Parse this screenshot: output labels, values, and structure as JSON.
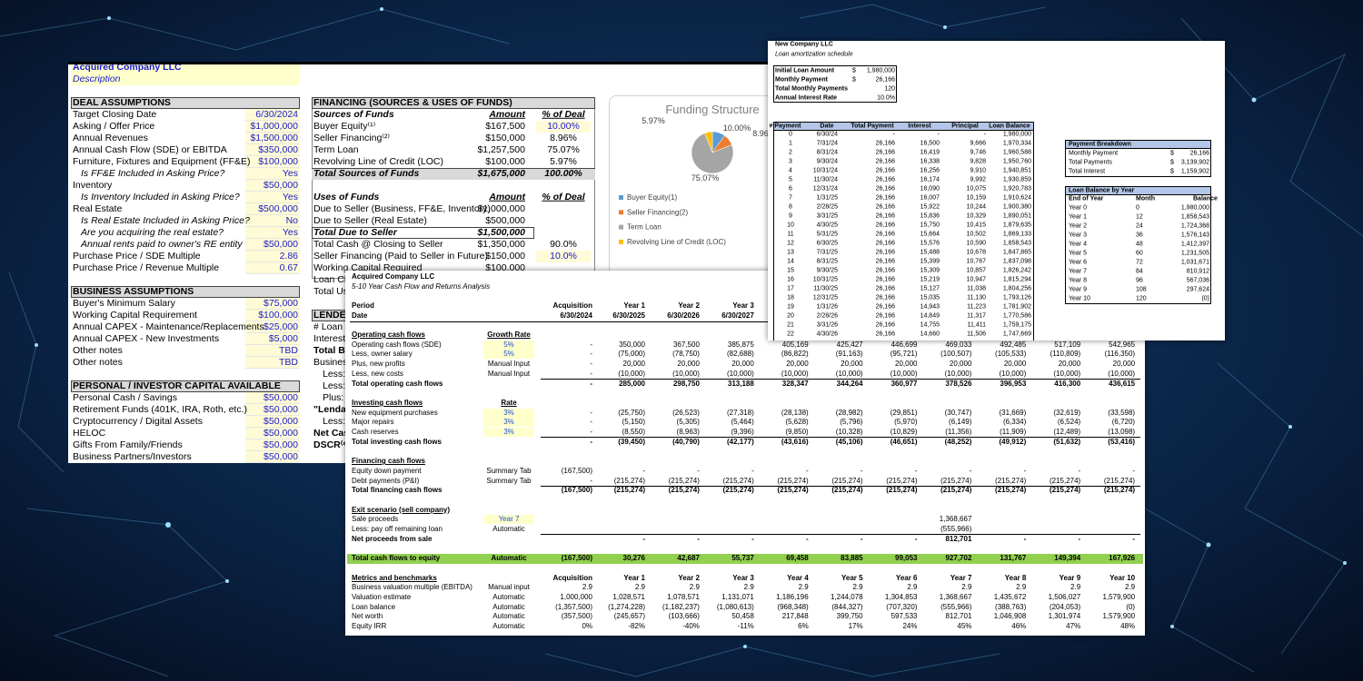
{
  "deal_sheet": {
    "title": "Acquired Company LLC",
    "description": "Description",
    "deal_assumptions": {
      "heading": "DEAL ASSUMPTIONS",
      "rows": [
        [
          "Target Closing Date",
          "6/30/2024"
        ],
        [
          "Asking / Offer Price",
          "$1,000,000"
        ],
        [
          "Annual Revenues",
          "$1,500,000"
        ],
        [
          "Annual Cash Flow (SDE) or EBITDA",
          "$350,000"
        ],
        [
          "Furniture, Fixtures and Equipment (FF&E)",
          "$100,000"
        ],
        [
          "Is FF&E Included in Asking Price?",
          "Yes"
        ],
        [
          "Inventory",
          "$50,000"
        ],
        [
          "Is Inventory Included in Asking Price?",
          "Yes"
        ],
        [
          "Real Estate",
          "$500,000"
        ],
        [
          "Is Real Estate Included in Asking Price?",
          "No"
        ],
        [
          "Are you acquiring the real estate?",
          "Yes"
        ],
        [
          "Annual rents paid to owner's RE entity",
          "$50,000"
        ],
        [
          "Purchase Price / SDE Multiple",
          "2.86"
        ],
        [
          "Purchase Price / Revenue Multiple",
          "0.67"
        ]
      ]
    },
    "business_assumptions": {
      "heading": "BUSINESS ASSUMPTIONS",
      "rows": [
        [
          "Buyer's Minimum Salary",
          "$75,000"
        ],
        [
          "Working Capital Requirement",
          "$100,000"
        ],
        [
          "Annual CAPEX - Maintenance/Replacements",
          "$25,000"
        ],
        [
          "Annual CAPEX - New Investments",
          "$5,000"
        ],
        [
          "Other notes",
          "TBD"
        ],
        [
          "Other notes",
          "TBD"
        ]
      ]
    },
    "capital_available": {
      "heading": "PERSONAL / INVESTOR CAPITAL AVAILABLE",
      "rows": [
        [
          "Personal Cash / Savings",
          "$50,000"
        ],
        [
          "Retirement Funds (401K, IRA, Roth, etc.)",
          "$50,000"
        ],
        [
          "Cryptocurrency / Digital Assets",
          "$50,000"
        ],
        [
          "HELOC",
          "$50,000"
        ],
        [
          "Gifts From Family/Friends",
          "$50,000"
        ],
        [
          "Business Partners/Investors",
          "$50,000"
        ]
      ]
    },
    "financing": {
      "heading": "FINANCING (SOURCES & USES OF FUNDS)",
      "rows": [
        [
          "Sources of Funds",
          "Amount",
          "% of Deal"
        ],
        [
          "Buyer Equity⁽¹⁾",
          "$167,500",
          "10.00%"
        ],
        [
          "Seller Financing⁽²⁾",
          "$150,000",
          "8.96%"
        ],
        [
          "Term Loan",
          "$1,257,500",
          "75.07%"
        ],
        [
          "Revolving Line of Credit (LOC)",
          "$100,000",
          "5.97%"
        ],
        [
          "Total Sources of Funds",
          "$1,675,000",
          "100.00%"
        ],
        null,
        [
          "Uses of Funds",
          "Amount",
          "% of Deal"
        ],
        [
          "Due to Seller (Business, FF&E, Inventory)",
          "$1,000,000",
          null
        ],
        [
          "Due to Seller (Real Estate)",
          "$500,000",
          null
        ],
        [
          "Total Due to Seller",
          "$1,500,000",
          null
        ],
        [
          "Total Cash @ Closing to Seller",
          "$1,350,000",
          "90.0%"
        ],
        [
          "Seller Financing (Paid to Seller in Future)",
          "$150,000",
          "10.0%"
        ],
        [
          "Working Capital Required",
          "$100,000",
          null
        ],
        [
          "Loan Clo"
        ],
        [
          "Total Us"
        ]
      ]
    },
    "lender": {
      "heading": "LENDER",
      "rows": [
        "# Loan P",
        "Interest",
        "Total Bo",
        "Business",
        "Less: Bu",
        "Less: Ca",
        "Plus: Re",
        "\"Lendab",
        "Less: D",
        "Net Cash",
        "DSCR⁽⁶⁾"
      ]
    }
  },
  "funding_chart": {
    "type": "pie",
    "title": "Funding Structure",
    "categories": [
      "Buyer Equity(1)",
      "Seller Financing(2)",
      "Term Loan",
      "Revolving Line of Credit (LOC)"
    ],
    "values": [
      10.0,
      8.96,
      75.07,
      5.97
    ],
    "value_labels": [
      "10.00%",
      "8.96%",
      "75.07%",
      "5.97%"
    ],
    "colors": [
      "#5b9bd5",
      "#ed7d31",
      "#a5a5a5",
      "#ffc000"
    ],
    "legend": "bottom"
  },
  "cash_flow_sheet": {
    "title": "Acquired Company LLC",
    "subtitle": "5-10 Year Cash Flow and Returns Analysis",
    "header": [
      [
        "Period",
        null,
        "Acquisition",
        "Year 1",
        "Year 2",
        "Year 3"
      ],
      [
        "Date",
        null,
        "6/30/2024",
        "6/30/2025",
        "6/30/2026",
        "6/30/2027"
      ]
    ],
    "rows": [
      [
        "Operating cash flows",
        "Growth Rate"
      ],
      [
        "Operating cash flows (SDE)",
        "5%",
        "-",
        "350,000",
        "367,500",
        "385,875",
        "405,169",
        "425,427",
        "446,699",
        "469,033",
        "492,485",
        "517,109",
        "542,965"
      ],
      [
        "Less, owner salary",
        "5%",
        "-",
        "(75,000)",
        "(78,750)",
        "(82,688)",
        "(86,822)",
        "(91,163)",
        "(95,721)",
        "(100,507)",
        "(105,533)",
        "(110,809)",
        "(116,350)"
      ],
      [
        "Plus, new profits",
        "Manual Input",
        "-",
        "20,000",
        "20,000",
        "20,000",
        "20,000",
        "20,000",
        "20,000",
        "20,000",
        "20,000",
        "20,000",
        "20,000"
      ],
      [
        "Less, new costs",
        "Manual Input",
        "-",
        "(10,000)",
        "(10,000)",
        "(10,000)",
        "(10,000)",
        "(10,000)",
        "(10,000)",
        "(10,000)",
        "(10,000)",
        "(10,000)",
        "(10,000)"
      ],
      [
        "Total operating cash flows",
        null,
        "-",
        "285,000",
        "298,750",
        "313,188",
        "328,347",
        "344,264",
        "360,977",
        "378,526",
        "396,953",
        "416,300",
        "436,615"
      ],
      null,
      [
        "Investing cash flows",
        "Rate"
      ],
      [
        "New equipment purchases",
        "3%",
        "-",
        "(25,750)",
        "(26,523)",
        "(27,318)",
        "(28,138)",
        "(28,982)",
        "(29,851)",
        "(30,747)",
        "(31,669)",
        "(32,619)",
        "(33,598)"
      ],
      [
        "Major repairs",
        "3%",
        "-",
        "(5,150)",
        "(5,305)",
        "(5,464)",
        "(5,628)",
        "(5,796)",
        "(5,970)",
        "(6,149)",
        "(6,334)",
        "(6,524)",
        "(6,720)"
      ],
      [
        "Cash reserves",
        "3%",
        "-",
        "(8,550)",
        "(8,963)",
        "(9,396)",
        "(9,850)",
        "(10,328)",
        "(10,829)",
        "(11,356)",
        "(11,909)",
        "(12,489)",
        "(13,098)"
      ],
      [
        "Total investing cash flows",
        null,
        "-",
        "(39,450)",
        "(40,790)",
        "(42,177)",
        "(43,616)",
        "(45,106)",
        "(46,651)",
        "(48,252)",
        "(49,912)",
        "(51,632)",
        "(53,416)"
      ],
      null,
      [
        "Financing cash flows"
      ],
      [
        "Equity down payment",
        "Summary Tab",
        "(167,500)",
        "-",
        "-",
        "-",
        "-",
        "-",
        "-",
        "-",
        "-",
        "-",
        "-"
      ],
      [
        "Debt payments (P&I)",
        "Summary Tab",
        "-",
        "(215,274)",
        "(215,274)",
        "(215,274)",
        "(215,274)",
        "(215,274)",
        "(215,274)",
        "(215,274)",
        "(215,274)",
        "(215,274)",
        "(215,274)"
      ],
      [
        "Total financing cash flows",
        null,
        "(167,500)",
        "(215,274)",
        "(215,274)",
        "(215,274)",
        "(215,274)",
        "(215,274)",
        "(215,274)",
        "(215,274)",
        "(215,274)",
        "(215,274)",
        "(215,274)"
      ],
      null,
      [
        "Exit scenario (sell company)"
      ],
      [
        "Sale proceeds",
        "Year 7",
        null,
        null,
        null,
        null,
        null,
        null,
        null,
        "1,368,667"
      ],
      [
        "Less: pay off remaining loan",
        "Automatic",
        null,
        null,
        null,
        null,
        null,
        null,
        null,
        "(555,966)"
      ],
      [
        "Net proceeds from sale",
        null,
        null,
        "-",
        "-",
        "-",
        "-",
        "-",
        "-",
        "812,701",
        "-",
        "-",
        "-"
      ],
      null,
      [
        "Total cash flows to equity",
        "Automatic",
        "(167,500)",
        "30,276",
        "42,687",
        "55,737",
        "69,458",
        "83,885",
        "99,053",
        "927,702",
        "131,767",
        "149,394",
        "167,926"
      ],
      null,
      [
        "Metrics and benchmarks",
        null,
        "Acquisition",
        "Year 1",
        "Year 2",
        "Year 3",
        "Year 4",
        "Year 5",
        "Year 6",
        "Year 7",
        "Year 8",
        "Year 9",
        "Year 10"
      ],
      [
        "Business valuation multiple (EBITDA)",
        "Manual input",
        "2.9",
        "2.9",
        "2.9",
        "2.9",
        "2.9",
        "2.9",
        "2.9",
        "2.9",
        "2.9",
        "2.9",
        "2.9"
      ],
      [
        "Valuation estimate",
        "Automatic",
        "1,000,000",
        "1,028,571",
        "1,078,571",
        "1,131,071",
        "1,186,196",
        "1,244,078",
        "1,304,853",
        "1,368,667",
        "1,435,672",
        "1,506,027",
        "1,579,900"
      ],
      [
        "Loan balance",
        "Automatic",
        "(1,357,500)",
        "(1,274,228)",
        "(1,182,237)",
        "(1,080,613)",
        "(968,348)",
        "(844,327)",
        "(707,320)",
        "(555,966)",
        "(388,763)",
        "(204,053)",
        "(0)"
      ],
      [
        "Net worth",
        "Automatic",
        "(357,500)",
        "(245,657)",
        "(103,666)",
        "50,458",
        "217,848",
        "399,750",
        "597,533",
        "812,701",
        "1,046,908",
        "1,301,974",
        "1,579,900"
      ],
      [
        "Equity IRR",
        "Automatic",
        "0%",
        "-82%",
        "-40%",
        "-11%",
        "6%",
        "17%",
        "24%",
        "45%",
        "46%",
        "47%",
        "48%"
      ]
    ]
  },
  "amortization": {
    "title": "New Company LLC",
    "subtitle": "Loan amortization schedule",
    "summary": [
      [
        "Initial Loan Amount",
        "$",
        "1,980,000"
      ],
      [
        "Monthly Payment",
        "$",
        "26,166"
      ],
      [
        "Total Monthly Payments",
        null,
        "120"
      ],
      [
        "Annual Interest Rate",
        null,
        "10.0%"
      ]
    ],
    "columns": [
      "# Payment",
      "Date",
      "Total Payment",
      "Interest",
      "Principal",
      "Loan Balance"
    ],
    "rows": [
      [
        "0",
        "6/30/24",
        "-",
        "-",
        "-",
        "1,980,000"
      ],
      [
        "1",
        "7/31/24",
        "26,166",
        "16,500",
        "9,666",
        "1,970,334"
      ],
      [
        "2",
        "8/31/24",
        "26,166",
        "16,419",
        "9,746",
        "1,960,588"
      ],
      [
        "3",
        "9/30/24",
        "26,166",
        "16,338",
        "9,828",
        "1,950,760"
      ],
      [
        "4",
        "10/31/24",
        "26,166",
        "16,256",
        "9,910",
        "1,940,851"
      ],
      [
        "5",
        "11/30/24",
        "26,166",
        "16,174",
        "9,992",
        "1,930,859"
      ],
      [
        "6",
        "12/31/24",
        "26,166",
        "16,090",
        "10,075",
        "1,920,783"
      ],
      [
        "7",
        "1/31/25",
        "26,166",
        "16,007",
        "10,159",
        "1,910,624"
      ],
      [
        "8",
        "2/28/25",
        "26,166",
        "15,922",
        "10,244",
        "1,900,380"
      ],
      [
        "9",
        "3/31/25",
        "26,166",
        "15,836",
        "10,329",
        "1,890,051"
      ],
      [
        "10",
        "4/30/25",
        "26,166",
        "15,750",
        "10,415",
        "1,879,635"
      ],
      [
        "11",
        "5/31/25",
        "26,166",
        "15,664",
        "10,502",
        "1,869,133"
      ],
      [
        "12",
        "6/30/25",
        "26,166",
        "15,576",
        "10,590",
        "1,858,543"
      ],
      [
        "13",
        "7/31/25",
        "26,166",
        "15,488",
        "10,678",
        "1,847,865"
      ],
      [
        "14",
        "8/31/25",
        "26,166",
        "15,399",
        "10,767",
        "1,837,098"
      ],
      [
        "15",
        "9/30/25",
        "26,166",
        "15,309",
        "10,857",
        "1,826,242"
      ],
      [
        "16",
        "10/31/25",
        "26,166",
        "15,219",
        "10,947",
        "1,815,294"
      ],
      [
        "17",
        "11/30/25",
        "26,166",
        "15,127",
        "11,038",
        "1,804,256"
      ],
      [
        "18",
        "12/31/25",
        "26,166",
        "15,035",
        "11,130",
        "1,793,126"
      ],
      [
        "19",
        "1/31/26",
        "26,166",
        "14,943",
        "11,223",
        "1,781,902"
      ],
      [
        "20",
        "2/28/26",
        "26,166",
        "14,849",
        "11,317",
        "1,770,586"
      ],
      [
        "21",
        "3/31/26",
        "26,166",
        "14,755",
        "11,411",
        "1,759,175"
      ],
      [
        "22",
        "4/30/26",
        "26,166",
        "14,660",
        "11,506",
        "1,747,669"
      ]
    ],
    "payment_breakdown": {
      "heading": "Payment Breakdown",
      "rows": [
        [
          "Monthly Payment",
          "$",
          "26,166"
        ],
        [
          "Total Payments",
          "$",
          "3,139,902"
        ],
        [
          "Total Interest",
          "$",
          "1,159,902"
        ]
      ]
    },
    "balance_by_year": {
      "heading": "Loan Balance by Year",
      "columns": [
        "End of Year",
        "Month",
        "Balance"
      ],
      "rows": [
        [
          "Year 0",
          "0",
          "1,980,000"
        ],
        [
          "Year 1",
          "12",
          "1,858,543"
        ],
        [
          "Year 2",
          "24",
          "1,724,368"
        ],
        [
          "Year 3",
          "36",
          "1,576,143"
        ],
        [
          "Year 4",
          "48",
          "1,412,397"
        ],
        [
          "Year 5",
          "60",
          "1,231,505"
        ],
        [
          "Year 6",
          "72",
          "1,031,671"
        ],
        [
          "Year 7",
          "84",
          "810,912"
        ],
        [
          "Year 8",
          "96",
          "567,036"
        ],
        [
          "Year 9",
          "108",
          "297,624"
        ],
        [
          "Year 10",
          "120",
          "(0)"
        ]
      ]
    }
  }
}
